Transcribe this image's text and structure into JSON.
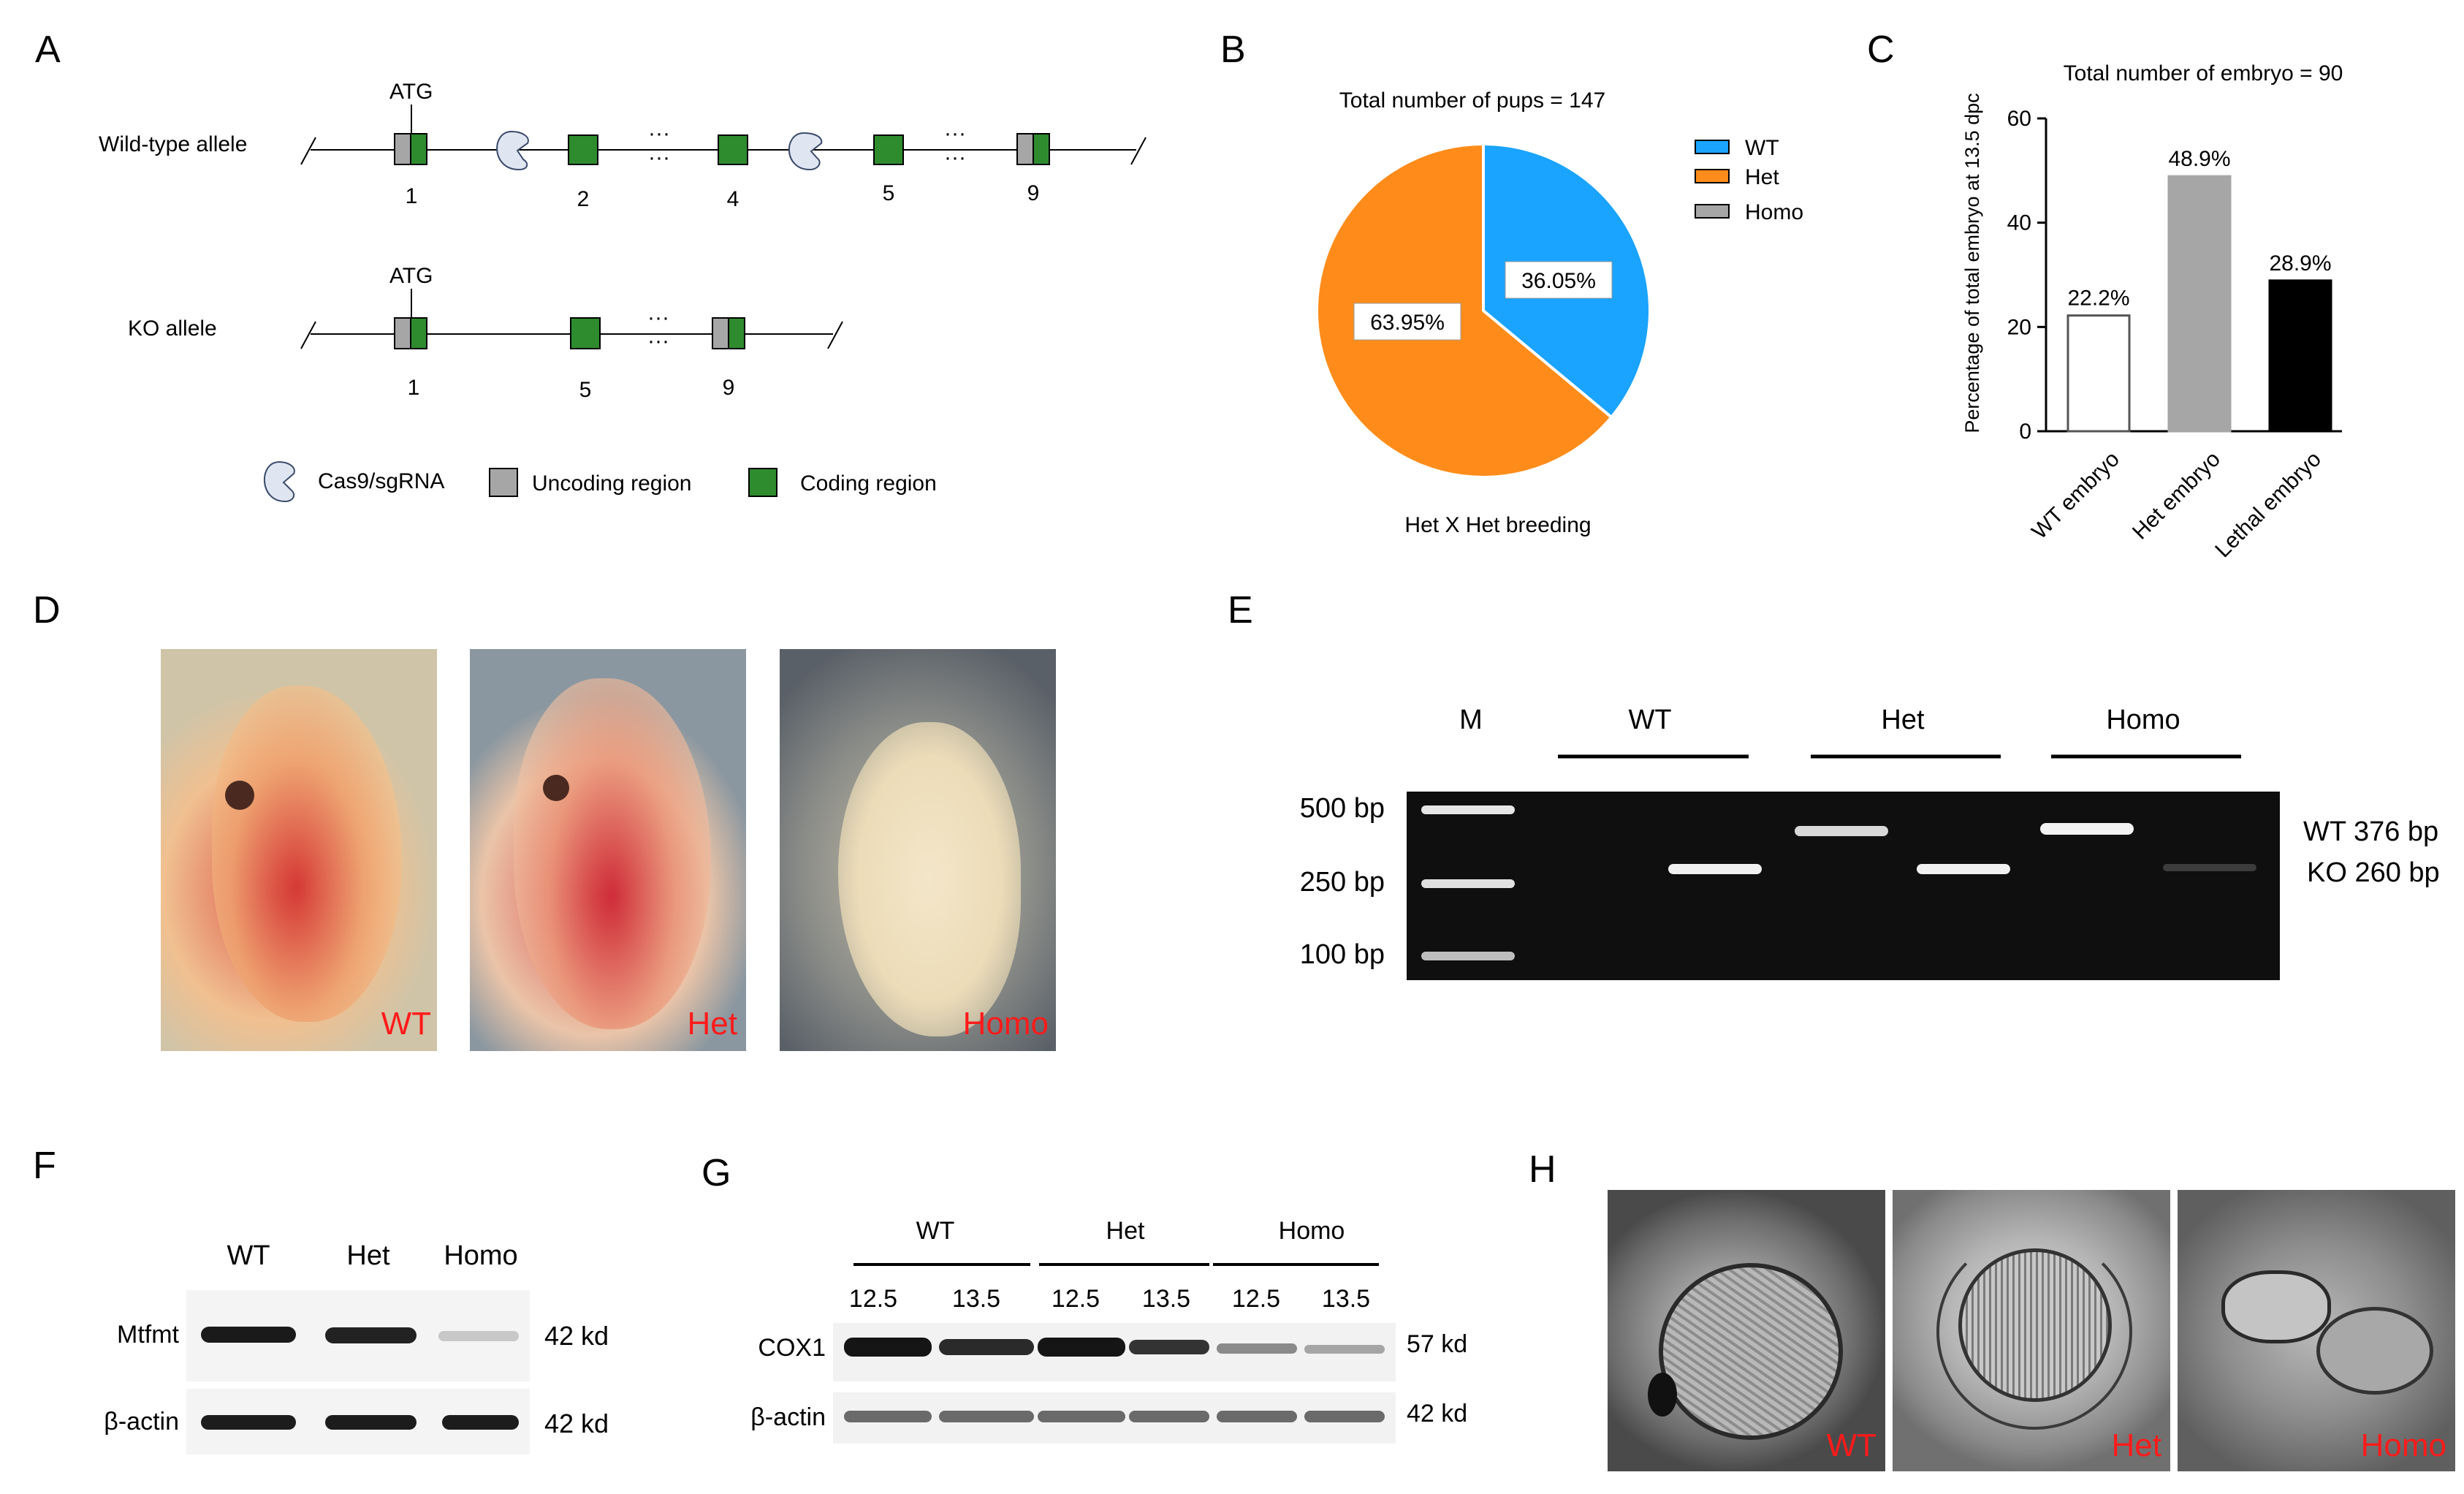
{
  "panels": {
    "A": {
      "letter": "A",
      "wt_label": "Wild-type allele",
      "ko_label": "KO allele",
      "atg": "ATG",
      "ellipsis": "···",
      "wt_exons": [
        "1",
        "2",
        "4",
        "5",
        "9"
      ],
      "ko_exons": [
        "1",
        "5",
        "9"
      ],
      "legend": {
        "cas9": "Cas9/sgRNA",
        "uncoding": "Uncoding region",
        "coding": "Coding region"
      },
      "colors": {
        "coding": "#2e8b2e",
        "uncoding": "#a6a6a6",
        "sgrna": "#dfe6f2"
      }
    },
    "B": {
      "letter": "B",
      "title": "Total number of pups = 147",
      "caption": "Het X Het breeding",
      "legend": [
        "WT",
        "Het",
        "Homo"
      ],
      "slice_labels": [
        "36.05%",
        "63.95%"
      ],
      "colors": {
        "WT": "#1aa3ff",
        "Het": "#ff8c1a",
        "Homo": "#a6a6a6"
      }
    },
    "C": {
      "letter": "C",
      "title": "Total number of embryo = 90",
      "ylabel": "Percentage of total embryo at 13.5 dpc",
      "yticks": [
        "0",
        "20",
        "40",
        "60"
      ],
      "categories": [
        "WT embryo",
        "Het embryo",
        "Lethal embryo"
      ],
      "bar_labels": [
        "22.2%",
        "48.9%",
        "28.9%"
      ]
    },
    "D": {
      "letter": "D",
      "labels": [
        "WT",
        "Het",
        "Homo"
      ]
    },
    "E": {
      "letter": "E",
      "marker": "M",
      "groups": [
        "WT",
        "Het",
        "Homo"
      ],
      "ladder": [
        "500 bp",
        "250 bp",
        "100 bp"
      ],
      "band_labels": [
        "WT 376 bp",
        "KO 260 bp"
      ]
    },
    "F": {
      "letter": "F",
      "lanes": [
        "WT",
        "Het",
        "Homo"
      ],
      "rows": [
        "Mtfmt",
        "β-actin"
      ],
      "sizes": [
        "42 kd",
        "42 kd"
      ]
    },
    "G": {
      "letter": "G",
      "groups": [
        "WT",
        "Het",
        "Homo"
      ],
      "stages": [
        "12.5",
        "13.5",
        "12.5",
        "13.5",
        "12.5",
        "13.5"
      ],
      "rows": [
        "COX1",
        "β-actin"
      ],
      "sizes": [
        "57 kd",
        "42 kd"
      ]
    },
    "H": {
      "letter": "H",
      "labels": [
        "WT",
        "Het",
        "Homo"
      ]
    }
  },
  "chart_data": [
    {
      "type": "pie",
      "title": "Total number of pups = 147",
      "caption": "Het X Het breeding",
      "labels": [
        "WT",
        "Het",
        "Homo"
      ],
      "values": [
        36.05,
        63.95,
        0
      ]
    },
    {
      "type": "bar",
      "title": "Total number of embryo = 90",
      "categories": [
        "WT embryo",
        "Het embryo",
        "Lethal embryo"
      ],
      "values": [
        22.2,
        48.9,
        28.9
      ],
      "ylabel": "Percentage of total embryo at 13.5 dpc",
      "ylim": [
        0,
        60
      ],
      "colors": [
        "#ffffff",
        "#a6a6a6",
        "#000000"
      ]
    }
  ]
}
